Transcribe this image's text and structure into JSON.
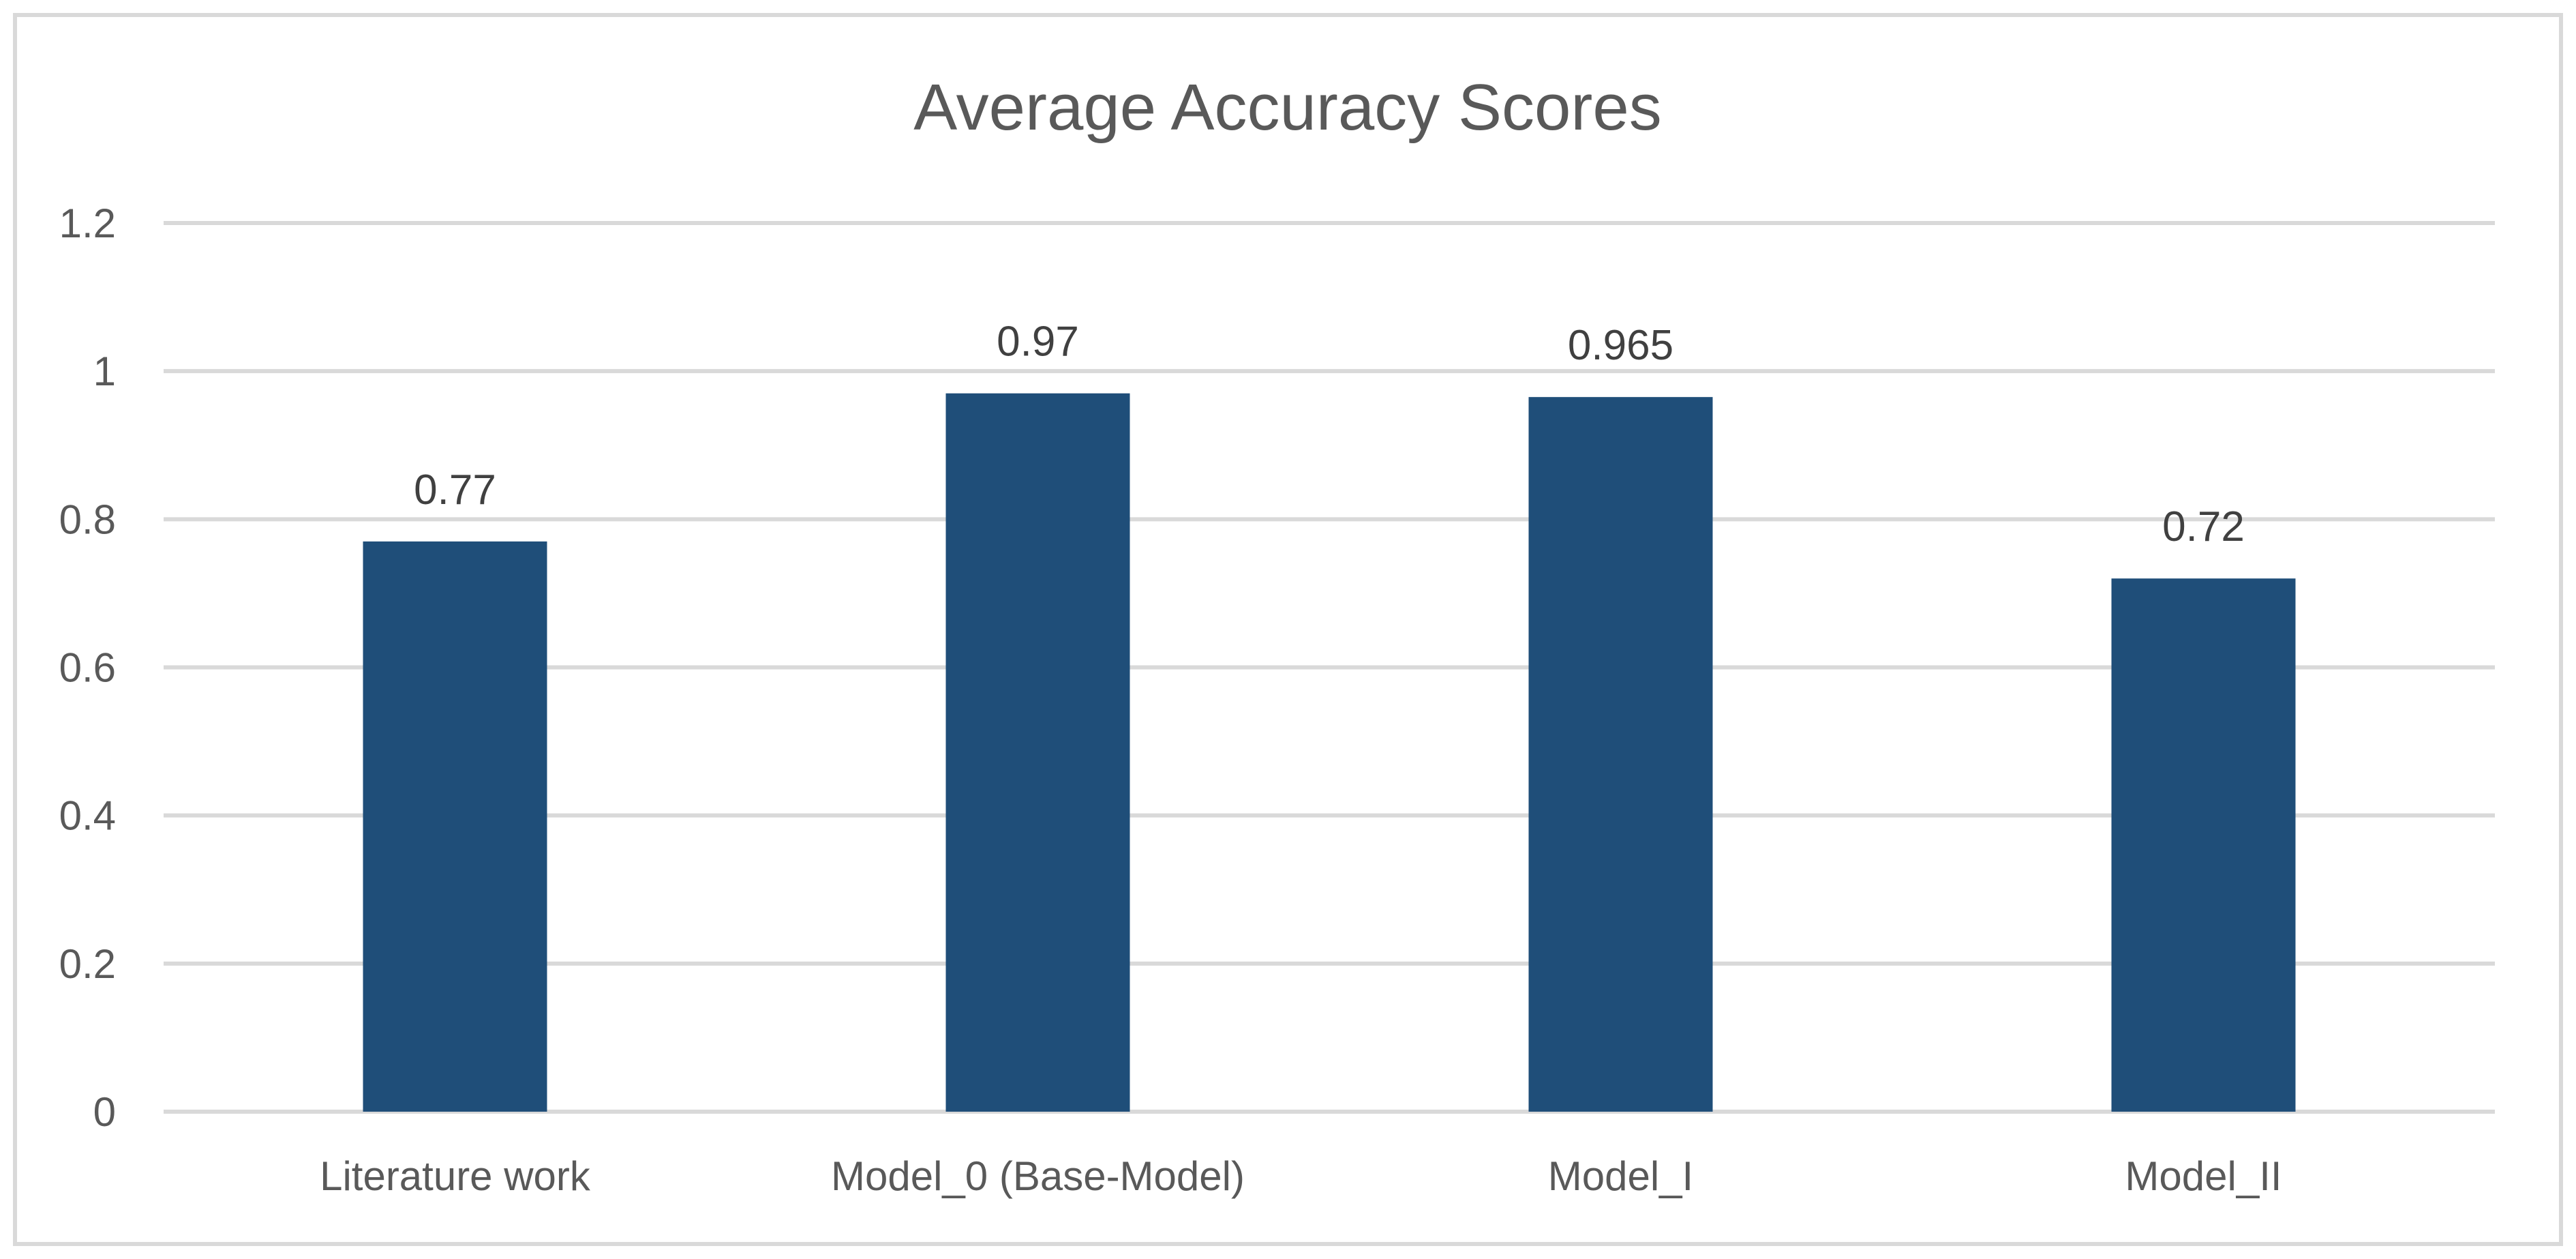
{
  "chart_data": {
    "type": "bar",
    "title": "Average Accuracy Scores",
    "categories": [
      "Literature work",
      "Model_0 (Base-Model)",
      "Model_I",
      "Model_II"
    ],
    "values": [
      0.77,
      0.97,
      0.965,
      0.72
    ],
    "data_labels": [
      "0.77",
      "0.97",
      "0.965",
      "0.72"
    ],
    "yticks": [
      "0",
      "0.2",
      "0.4",
      "0.6",
      "0.8",
      "1",
      "1.2"
    ],
    "ylim": [
      0,
      1.2
    ],
    "grid": true,
    "legend": "none",
    "bar_color": "#1F4E79",
    "grid_color": "#D9D9D9",
    "text_color": "#595959",
    "border_color": "#D9D9D9"
  }
}
